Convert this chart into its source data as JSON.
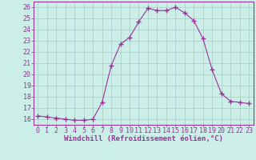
{
  "x": [
    0,
    1,
    2,
    3,
    4,
    5,
    6,
    7,
    8,
    9,
    10,
    11,
    12,
    13,
    14,
    15,
    16,
    17,
    18,
    19,
    20,
    21,
    22,
    23
  ],
  "y": [
    16.3,
    16.2,
    16.1,
    16.0,
    15.9,
    15.9,
    16.0,
    17.5,
    20.8,
    22.7,
    23.3,
    24.7,
    25.9,
    25.7,
    25.7,
    26.0,
    25.5,
    24.8,
    23.2,
    20.4,
    18.3,
    17.6,
    17.5,
    17.4
  ],
  "line_color": "#993399",
  "marker": "+",
  "marker_size": 4,
  "background_color": "#cceee8",
  "grid_color": "#aaccbb",
  "xlabel": "Windchill (Refroidissement éolien,°C)",
  "xlim": [
    -0.5,
    23.5
  ],
  "ylim": [
    15.5,
    26.5
  ],
  "yticks": [
    16,
    17,
    18,
    19,
    20,
    21,
    22,
    23,
    24,
    25,
    26
  ],
  "xticks": [
    0,
    1,
    2,
    3,
    4,
    5,
    6,
    7,
    8,
    9,
    10,
    11,
    12,
    13,
    14,
    15,
    16,
    17,
    18,
    19,
    20,
    21,
    22,
    23
  ],
  "label_color": "#993399",
  "tick_color": "#993399",
  "spine_color": "#993399",
  "tick_fontsize": 6,
  "xlabel_fontsize": 6.5
}
